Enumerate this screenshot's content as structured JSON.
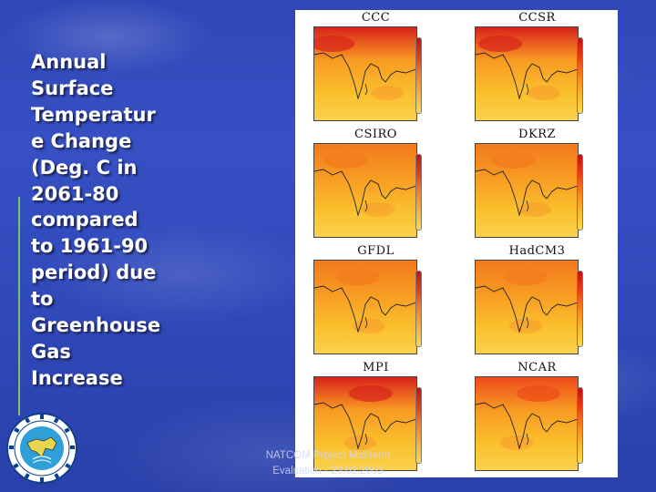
{
  "slide": {
    "title": "Annual\nSurface\nTemperatur\ne Change\n(Deg. C in\n2061-80\ncompared\nto 1961-90\nperiod) due\nto\nGreenhouse\nGas\nIncrease",
    "footer_line1": "NATCOM Project Mid-term",
    "footer_line2": "Evaluation - 23.02.2003",
    "background_color": "#3049bb",
    "title_color": "#ffffff"
  },
  "figure": {
    "panels": [
      {
        "model": "CCC",
        "heat": 0.85
      },
      {
        "model": "CCSR",
        "heat": 0.75
      },
      {
        "model": "CSIRO",
        "heat": 0.45
      },
      {
        "model": "DKRZ",
        "heat": 0.5
      },
      {
        "model": "GFDL",
        "heat": 0.5
      },
      {
        "model": "HadCM3",
        "heat": 0.55
      },
      {
        "model": "MPI",
        "heat": 0.8
      },
      {
        "model": "NCAR",
        "heat": 0.65
      }
    ],
    "colorbar_colors": [
      "#c41010",
      "#ee3a15",
      "#f77f1c",
      "#fbb52a",
      "#f9dc4a"
    ],
    "logo_icon": "organization-seal-icon"
  }
}
